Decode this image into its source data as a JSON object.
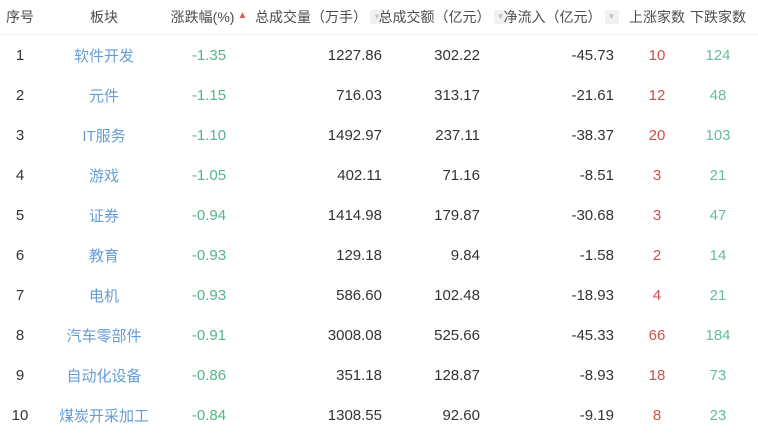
{
  "icons": {
    "sort_asc": "▲",
    "sort_desc": "▼"
  },
  "colors": {
    "sector_link_blue": "#649dd6",
    "negative_green": "#50b787",
    "down_count_green": "#66be95",
    "up_count_red": "#cc524f",
    "sort_active_red": "#e25c54",
    "header_text": "#4c4c4c",
    "value_text": "#333333"
  },
  "table": {
    "columns": [
      {
        "key": "index",
        "label": "序号"
      },
      {
        "key": "sector",
        "label": "板块"
      },
      {
        "key": "change",
        "label": "涨跌幅(%)",
        "sort": "asc"
      },
      {
        "key": "volume",
        "label": "总成交量（万手）",
        "sort": "none"
      },
      {
        "key": "turnover",
        "label": "总成交额（亿元）",
        "sort": "none"
      },
      {
        "key": "inflow",
        "label": "净流入（亿元）",
        "sort": "none"
      },
      {
        "key": "up",
        "label": "上涨家数"
      },
      {
        "key": "down",
        "label": "下跌家数"
      }
    ],
    "rows": [
      {
        "index": "1",
        "sector": "软件开发",
        "change": "-1.35",
        "volume": "1227.86",
        "turnover": "302.22",
        "inflow": "-45.73",
        "up": "10",
        "down": "124"
      },
      {
        "index": "2",
        "sector": "元件",
        "change": "-1.15",
        "volume": "716.03",
        "turnover": "313.17",
        "inflow": "-21.61",
        "up": "12",
        "down": "48"
      },
      {
        "index": "3",
        "sector": "IT服务",
        "change": "-1.10",
        "volume": "1492.97",
        "turnover": "237.11",
        "inflow": "-38.37",
        "up": "20",
        "down": "103"
      },
      {
        "index": "4",
        "sector": "游戏",
        "change": "-1.05",
        "volume": "402.11",
        "turnover": "71.16",
        "inflow": "-8.51",
        "up": "3",
        "down": "21"
      },
      {
        "index": "5",
        "sector": "证券",
        "change": "-0.94",
        "volume": "1414.98",
        "turnover": "179.87",
        "inflow": "-30.68",
        "up": "3",
        "down": "47"
      },
      {
        "index": "6",
        "sector": "教育",
        "change": "-0.93",
        "volume": "129.18",
        "turnover": "9.84",
        "inflow": "-1.58",
        "up": "2",
        "down": "14"
      },
      {
        "index": "7",
        "sector": "电机",
        "change": "-0.93",
        "volume": "586.60",
        "turnover": "102.48",
        "inflow": "-18.93",
        "up": "4",
        "down": "21"
      },
      {
        "index": "8",
        "sector": "汽车零部件",
        "change": "-0.91",
        "volume": "3008.08",
        "turnover": "525.66",
        "inflow": "-45.33",
        "up": "66",
        "down": "184"
      },
      {
        "index": "9",
        "sector": "自动化设备",
        "change": "-0.86",
        "volume": "351.18",
        "turnover": "128.87",
        "inflow": "-8.93",
        "up": "18",
        "down": "73"
      },
      {
        "index": "10",
        "sector": "煤炭开采加工",
        "change": "-0.84",
        "volume": "1308.55",
        "turnover": "92.60",
        "inflow": "-9.19",
        "up": "8",
        "down": "23"
      }
    ]
  }
}
